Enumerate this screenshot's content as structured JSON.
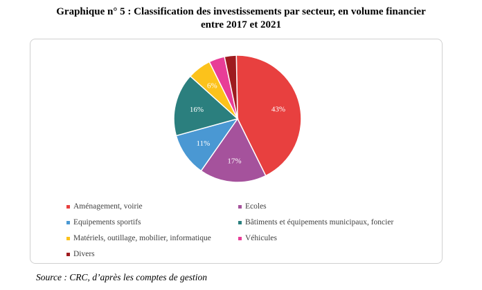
{
  "title": {
    "line1": "Graphique n° 5 :  Classification des investissements par secteur, en volume financier",
    "line2": "entre 2017 et 2021"
  },
  "chart_data": {
    "type": "pie",
    "categories": [
      "Aménagement, voirie",
      "Ecoles",
      "Equipements sportifs",
      "Bâtiments et équipements municipaux, foncier",
      "Matériels, outillage, mobilier, informatique",
      "Véhicules",
      "Divers"
    ],
    "values": [
      43,
      17,
      11,
      16,
      6,
      4,
      3
    ],
    "value_labels": [
      "43%",
      "17%",
      "11%",
      "16%",
      "6%",
      "",
      ""
    ],
    "colors": [
      "#e8403f",
      "#a5529c",
      "#4a98d3",
      "#2b7f7e",
      "#fcc21b",
      "#e83d97",
      "#9e1b1f"
    ],
    "legend_position": "bottom"
  },
  "source": "Source : CRC, d’après les comptes de gestion"
}
